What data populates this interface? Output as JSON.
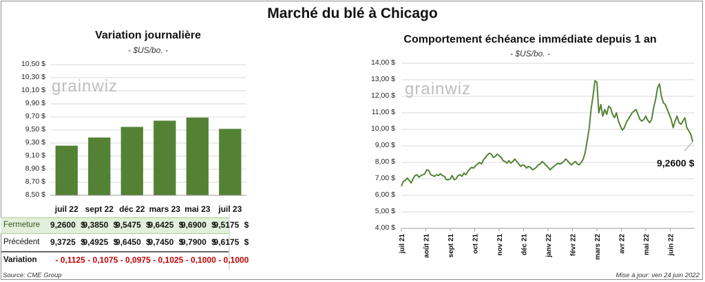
{
  "title": "Marché du blé à Chicago",
  "left": {
    "title": "Variation journalière",
    "unit": "- $US/bo. -",
    "watermark": "grainwiz",
    "chart_data": {
      "type": "bar",
      "categories": [
        "juil 22",
        "sept 22",
        "déc 22",
        "mars 23",
        "mai 23",
        "juil 23"
      ],
      "values": [
        9.26,
        9.385,
        9.5475,
        9.6425,
        9.69,
        9.5175
      ],
      "ylim": [
        8.5,
        10.5
      ],
      "yticks": [
        "8,50 $",
        "8,70 $",
        "8,90 $",
        "9,10 $",
        "9,30 $",
        "9,50 $",
        "9,70 $",
        "9,90 $",
        "10,10 $",
        "10,30 $",
        "10,50 $"
      ],
      "bar_color": "#548235",
      "grid": true
    },
    "table": {
      "currency": "$",
      "rows": [
        {
          "label": "Fermeture",
          "values": [
            "9,2600",
            "9,3850",
            "9,5475",
            "9,6425",
            "9,6900",
            "9,5175"
          ],
          "with_currency": true,
          "highlight": "#e2efda"
        },
        {
          "label": "Précédent",
          "values": [
            "9,3725",
            "9,4925",
            "9,6450",
            "9,7450",
            "9,7900",
            "9,6175"
          ],
          "with_currency": true
        },
        {
          "label": "Variation",
          "values": [
            "- 0,1125",
            "- 0,1075",
            "- 0,0975",
            "- 0,1025",
            "- 0,1000",
            "- 0,1000"
          ],
          "with_currency": false,
          "color": "#c00000"
        }
      ]
    }
  },
  "right": {
    "title": "Comportement  échéance immédiate depuis 1 an",
    "unit": "- $US/bo. -",
    "watermark": "grainwiz",
    "last_value_label": "9,2600 $",
    "chart_data": {
      "type": "line",
      "series": [
        {
          "color": "#548235",
          "points": [
            [
              0,
              6.55
            ],
            [
              2,
              6.85
            ],
            [
              4,
              6.9
            ],
            [
              6,
              7.05
            ],
            [
              8,
              6.9
            ],
            [
              10,
              6.75
            ],
            [
              12,
              7.0
            ],
            [
              14,
              7.2
            ],
            [
              16,
              7.25
            ],
            [
              18,
              7.1
            ],
            [
              20,
              7.2
            ],
            [
              22,
              7.25
            ],
            [
              24,
              7.3
            ],
            [
              26,
              7.55
            ],
            [
              28,
              7.5
            ],
            [
              30,
              7.25
            ],
            [
              32,
              7.2
            ],
            [
              34,
              7.15
            ],
            [
              36,
              7.25
            ],
            [
              38,
              7.2
            ],
            [
              40,
              7.3
            ],
            [
              42,
              7.2
            ],
            [
              44,
              7.15
            ],
            [
              46,
              6.95
            ],
            [
              48,
              6.95
            ],
            [
              50,
              7.0
            ],
            [
              52,
              7.2
            ],
            [
              54,
              6.95
            ],
            [
              56,
              7.0
            ],
            [
              58,
              7.2
            ],
            [
              60,
              7.25
            ],
            [
              62,
              7.15
            ],
            [
              64,
              7.35
            ],
            [
              66,
              7.25
            ],
            [
              68,
              7.45
            ],
            [
              70,
              7.6
            ],
            [
              72,
              7.7
            ],
            [
              74,
              7.65
            ],
            [
              76,
              7.8
            ],
            [
              78,
              7.9
            ],
            [
              80,
              8.0
            ],
            [
              82,
              7.9
            ],
            [
              84,
              8.15
            ],
            [
              86,
              8.3
            ],
            [
              88,
              8.45
            ],
            [
              90,
              8.55
            ],
            [
              92,
              8.5
            ],
            [
              94,
              8.3
            ],
            [
              96,
              8.35
            ],
            [
              98,
              8.5
            ],
            [
              100,
              8.4
            ],
            [
              102,
              8.3
            ],
            [
              104,
              8.1
            ],
            [
              106,
              8.05
            ],
            [
              108,
              7.95
            ],
            [
              110,
              8.1
            ],
            [
              112,
              7.95
            ],
            [
              114,
              8.05
            ],
            [
              116,
              8.2
            ],
            [
              118,
              8.05
            ],
            [
              120,
              7.9
            ],
            [
              122,
              7.75
            ],
            [
              124,
              7.85
            ],
            [
              126,
              7.8
            ],
            [
              128,
              7.65
            ],
            [
              130,
              7.75
            ],
            [
              132,
              7.7
            ],
            [
              134,
              7.55
            ],
            [
              136,
              7.6
            ],
            [
              138,
              7.7
            ],
            [
              140,
              7.85
            ],
            [
              142,
              7.9
            ],
            [
              144,
              8.05
            ],
            [
              146,
              7.95
            ],
            [
              148,
              7.8
            ],
            [
              150,
              7.7
            ],
            [
              152,
              7.55
            ],
            [
              154,
              7.65
            ],
            [
              156,
              7.75
            ],
            [
              158,
              7.85
            ],
            [
              160,
              7.95
            ],
            [
              162,
              7.9
            ],
            [
              164,
              7.95
            ],
            [
              166,
              8.05
            ],
            [
              168,
              8.2
            ],
            [
              170,
              8.1
            ],
            [
              172,
              7.95
            ],
            [
              174,
              7.85
            ],
            [
              176,
              7.95
            ],
            [
              178,
              8.05
            ],
            [
              180,
              7.9
            ],
            [
              182,
              7.85
            ],
            [
              184,
              8.0
            ],
            [
              186,
              8.2
            ],
            [
              188,
              8.6
            ],
            [
              190,
              9.3
            ],
            [
              192,
              10.0
            ],
            [
              194,
              11.2
            ],
            [
              196,
              12.0
            ],
            [
              198,
              12.95
            ],
            [
              200,
              12.85
            ],
            [
              202,
              11.0
            ],
            [
              204,
              11.5
            ],
            [
              206,
              10.8
            ],
            [
              208,
              11.2
            ],
            [
              210,
              10.9
            ],
            [
              212,
              11.4
            ],
            [
              214,
              11.3
            ],
            [
              216,
              10.9
            ],
            [
              218,
              10.7
            ],
            [
              220,
              11.0
            ],
            [
              222,
              10.5
            ],
            [
              224,
              10.2
            ],
            [
              226,
              9.95
            ],
            [
              228,
              10.1
            ],
            [
              230,
              10.4
            ],
            [
              232,
              10.6
            ],
            [
              234,
              10.8
            ],
            [
              236,
              11.0
            ],
            [
              238,
              11.1
            ],
            [
              240,
              11.2
            ],
            [
              242,
              10.9
            ],
            [
              244,
              10.6
            ],
            [
              246,
              10.5
            ],
            [
              248,
              10.6
            ],
            [
              250,
              10.8
            ],
            [
              252,
              10.55
            ],
            [
              254,
              10.4
            ],
            [
              256,
              10.6
            ],
            [
              258,
              11.3
            ],
            [
              260,
              11.8
            ],
            [
              262,
              12.5
            ],
            [
              264,
              12.75
            ],
            [
              266,
              12.0
            ],
            [
              268,
              11.6
            ],
            [
              270,
              11.5
            ],
            [
              272,
              11.2
            ],
            [
              274,
              10.9
            ],
            [
              276,
              10.6
            ],
            [
              278,
              10.1
            ],
            [
              280,
              10.5
            ],
            [
              282,
              10.8
            ],
            [
              284,
              10.4
            ],
            [
              286,
              10.3
            ],
            [
              288,
              10.5
            ],
            [
              290,
              10.7
            ],
            [
              292,
              10.1
            ],
            [
              294,
              9.9
            ],
            [
              296,
              9.7
            ],
            [
              298,
              9.26
            ]
          ]
        }
      ],
      "ylim": [
        4,
        14
      ],
      "yticks": [
        "4,00 $",
        "5,00 $",
        "6,00 $",
        "7,00 $",
        "8,00 $",
        "9,00 $",
        "10,00 $",
        "11,00 $",
        "12,00 $",
        "13,00 $",
        "14,00 $"
      ],
      "x_range": [
        0,
        300
      ],
      "xticks": [
        {
          "label": "juil 21",
          "x": 0
        },
        {
          "label": "août 21",
          "x": 25
        },
        {
          "label": "sept 21",
          "x": 50
        },
        {
          "label": "oct 21",
          "x": 75
        },
        {
          "label": "nov 21",
          "x": 100
        },
        {
          "label": "déc 21",
          "x": 125
        },
        {
          "label": "janv 22",
          "x": 150
        },
        {
          "label": "févr 22",
          "x": 175
        },
        {
          "label": "mars 22",
          "x": 200
        },
        {
          "label": "avr 22",
          "x": 225
        },
        {
          "label": "mai 22",
          "x": 250
        },
        {
          "label": "juin 22",
          "x": 275
        }
      ],
      "grid": true
    }
  },
  "footer": {
    "source": "Source: CME Group",
    "updated": "Mise à jour: ven 24 juin 2022"
  }
}
